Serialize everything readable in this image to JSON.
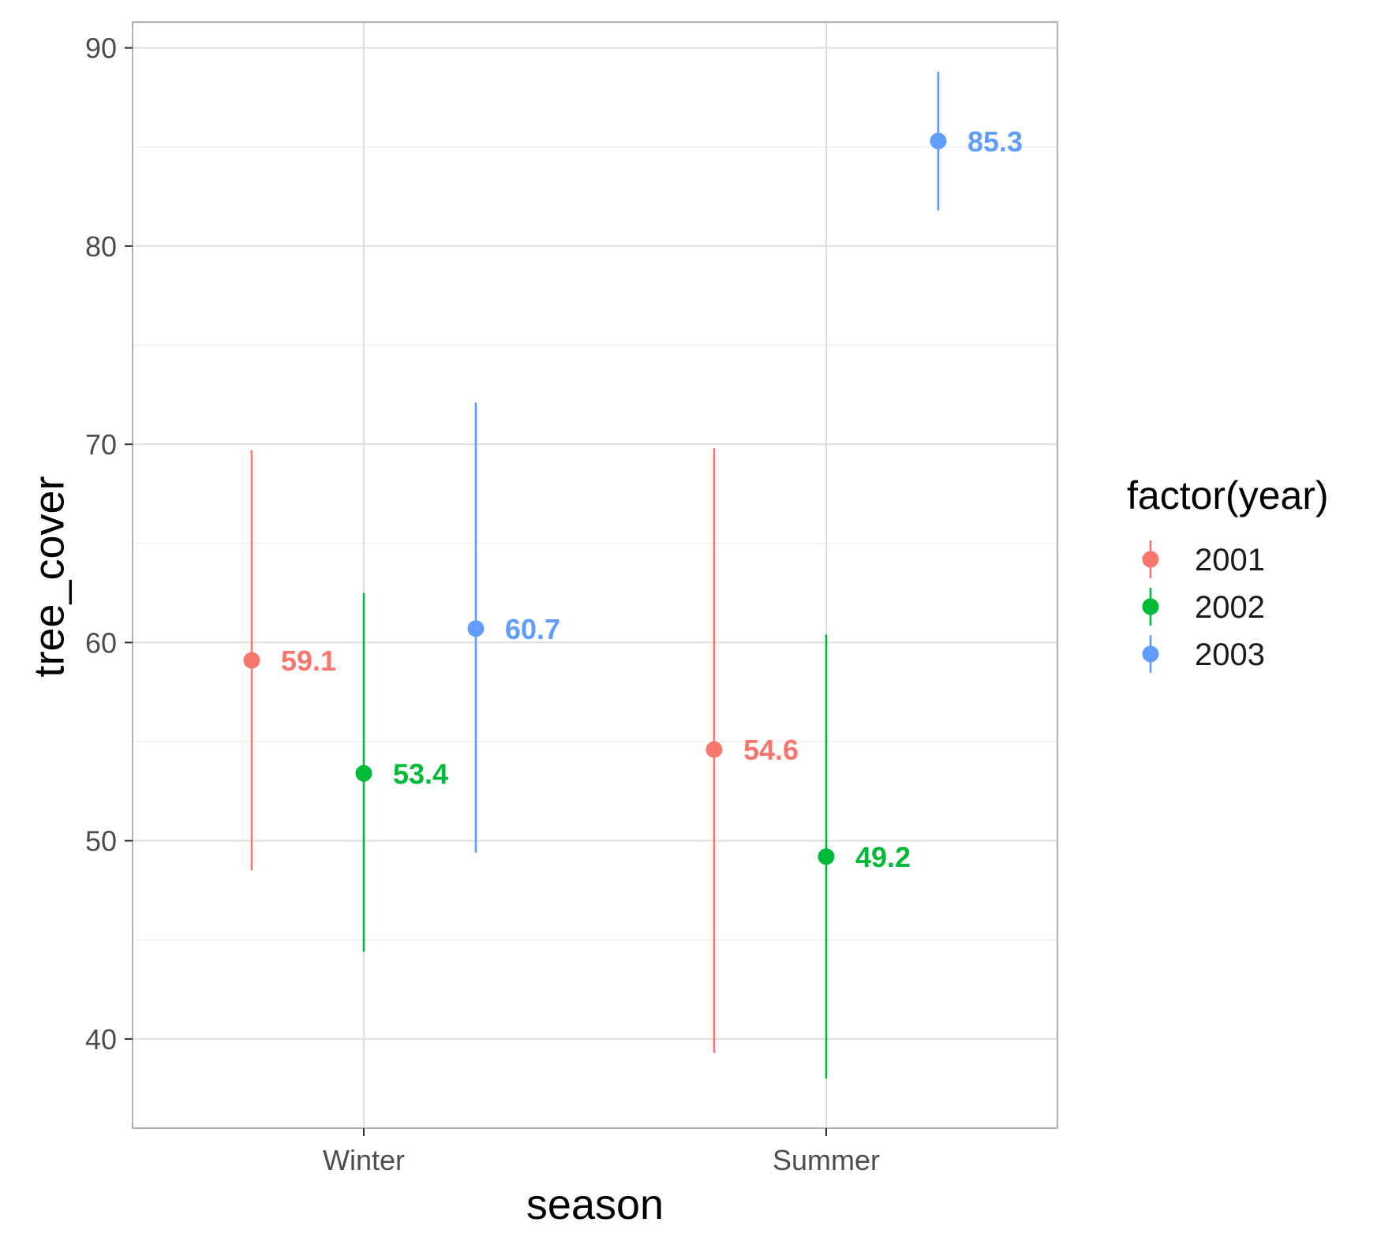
{
  "chart_data": {
    "type": "scatter",
    "geom": "pointrange",
    "xlabel": "season",
    "ylabel": "tree_cover",
    "categories": [
      "Winter",
      "Summer"
    ],
    "ylim": [
      35.5,
      91.3
    ],
    "yticks": [
      40,
      50,
      60,
      70,
      80,
      90
    ],
    "grid": true,
    "legend": {
      "title": "factor(year)",
      "position": "right",
      "entries": [
        "2001",
        "2002",
        "2003"
      ]
    },
    "series": [
      {
        "name": "2001",
        "color": "#F8766D",
        "points": [
          {
            "category": "Winter",
            "y": 59.1,
            "ymin": 48.5,
            "ymax": 69.7,
            "label": "59.1"
          },
          {
            "category": "Summer",
            "y": 54.6,
            "ymin": 39.3,
            "ymax": 69.8,
            "label": "54.6"
          }
        ]
      },
      {
        "name": "2002",
        "color": "#00BA38",
        "points": [
          {
            "category": "Winter",
            "y": 53.4,
            "ymin": 44.4,
            "ymax": 62.5,
            "label": "53.4"
          },
          {
            "category": "Summer",
            "y": 49.2,
            "ymin": 38.0,
            "ymax": 60.4,
            "label": "49.2"
          }
        ]
      },
      {
        "name": "2003",
        "color": "#619CFF",
        "points": [
          {
            "category": "Winter",
            "y": 60.7,
            "ymin": 49.4,
            "ymax": 72.1,
            "label": "60.7"
          },
          {
            "category": "Summer",
            "y": 85.3,
            "ymin": 81.8,
            "ymax": 88.8,
            "label": "85.3"
          }
        ]
      }
    ]
  }
}
